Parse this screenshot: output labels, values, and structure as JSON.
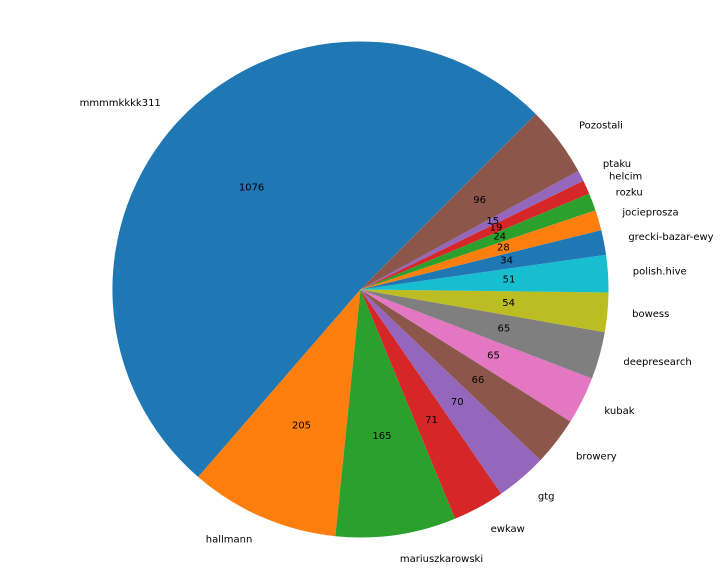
{
  "chart_data": {
    "type": "pie",
    "title": "",
    "slices": [
      {
        "label": "mmmmkkkk311",
        "value": 1076,
        "color": "#1f77b4"
      },
      {
        "label": "hallmann",
        "value": 205,
        "color": "#ff7f0e"
      },
      {
        "label": "mariuszkarowski",
        "value": 165,
        "color": "#2ca02c"
      },
      {
        "label": "ewkaw",
        "value": 71,
        "color": "#d62728"
      },
      {
        "label": "gtg",
        "value": 70,
        "color": "#9467bd"
      },
      {
        "label": "browery",
        "value": 66,
        "color": "#8c564b"
      },
      {
        "label": "kubak",
        "value": 65,
        "color": "#e377c2"
      },
      {
        "label": "deepresearch",
        "value": 65,
        "color": "#7f7f7f"
      },
      {
        "label": "bowess",
        "value": 54,
        "color": "#bcbd22"
      },
      {
        "label": "polish.hive",
        "value": 51,
        "color": "#17becf"
      },
      {
        "label": "grecki-bazar-ewy",
        "value": 34,
        "color": "#1f77b4"
      },
      {
        "label": "jocieprosza",
        "value": 28,
        "color": "#ff7f0e"
      },
      {
        "label": "rozku",
        "value": 24,
        "color": "#2ca02c"
      },
      {
        "label": "helcim",
        "value": 19,
        "color": "#d62728"
      },
      {
        "label": "ptaku",
        "value": 15,
        "color": "#9467bd"
      },
      {
        "label": "Pozostali",
        "value": 96,
        "color": "#8c564b"
      }
    ],
    "start_angle_deg": 45,
    "direction": "counterclockwise",
    "legend": "none"
  }
}
